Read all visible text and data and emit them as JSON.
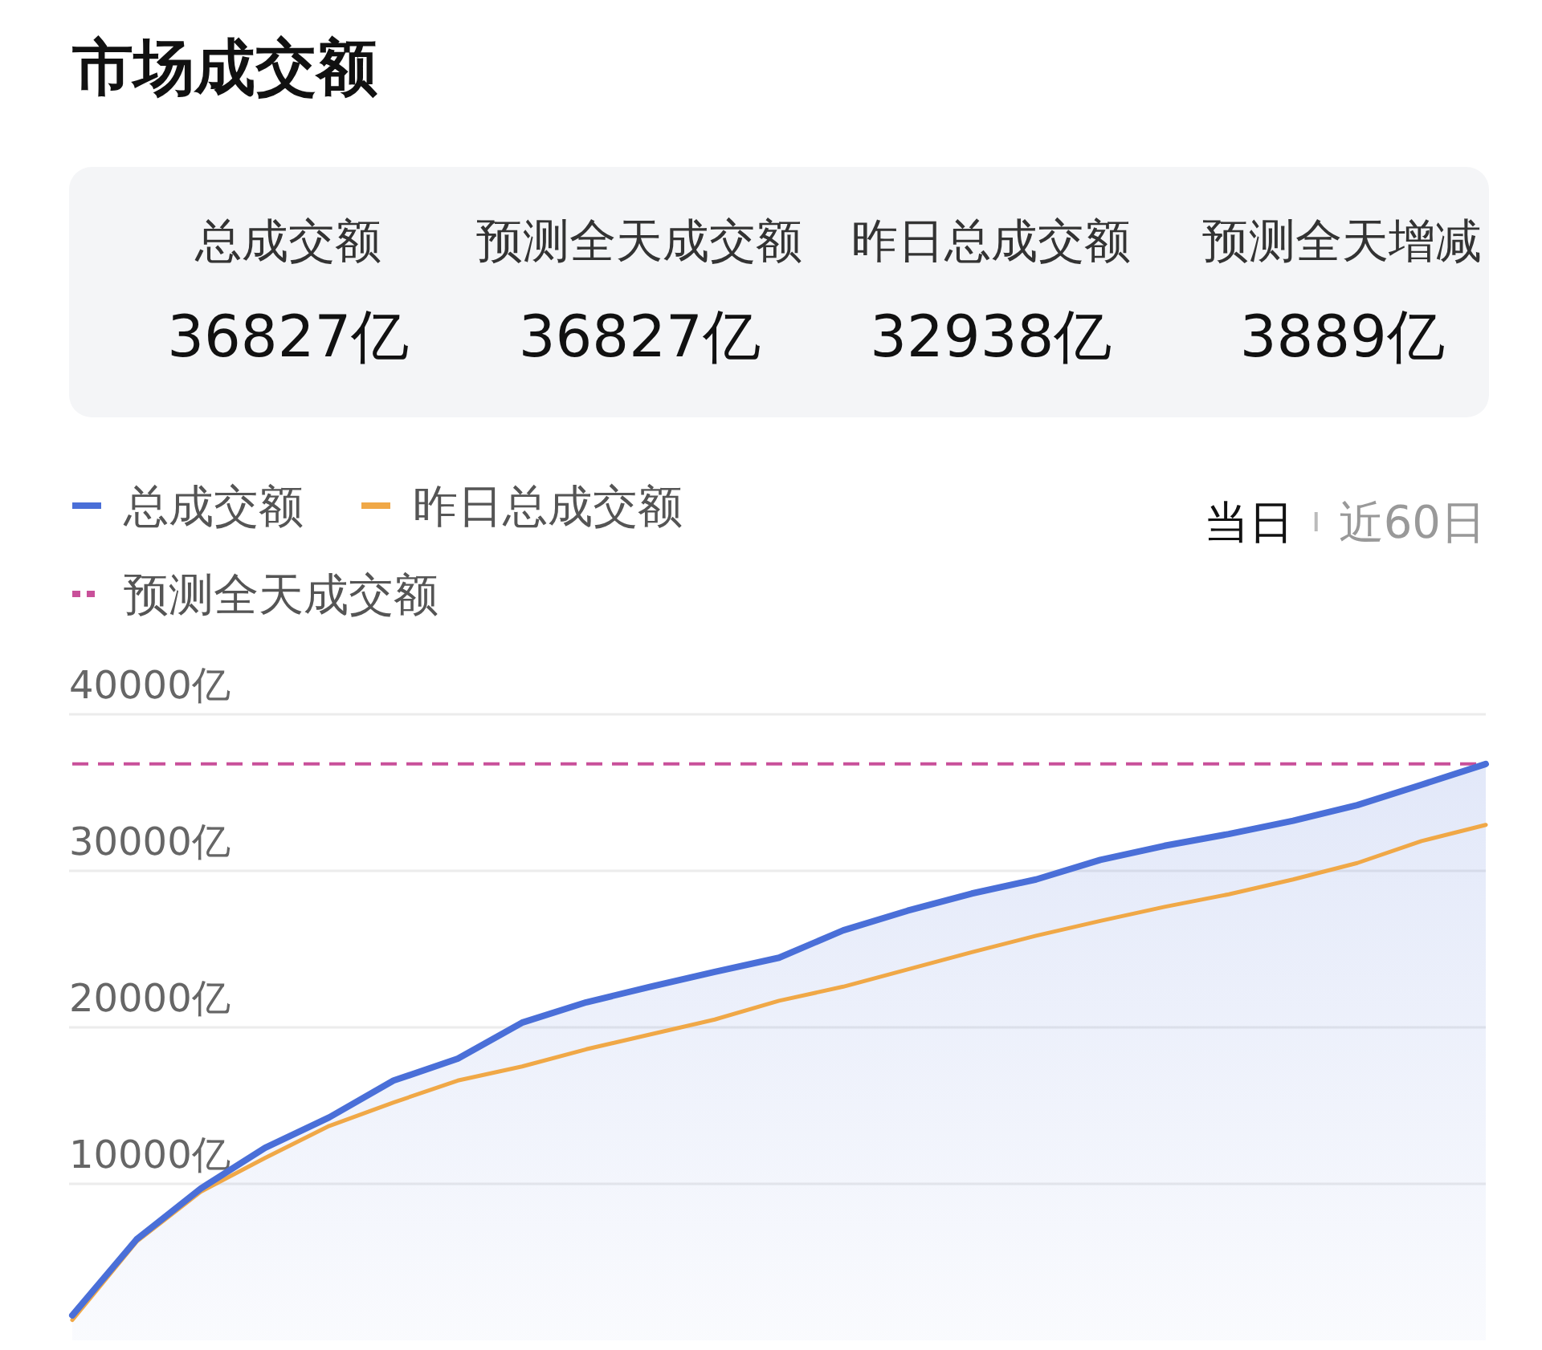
{
  "chart_data": [
    {
      "type": "other",
      "title": "市场成交额",
      "annotations": [
        "总成交额",
        "36827亿",
        "预测全天成交额",
        "36827亿",
        "昨日总成交额",
        "32938亿",
        "预测全天增减",
        "3889亿"
      ]
    },
    {
      "type": "line",
      "categories": [
        null,
        null,
        null,
        null,
        null,
        null,
        null,
        null,
        null,
        null,
        null,
        null,
        null,
        null,
        null,
        null,
        null,
        null,
        null,
        null,
        null,
        null,
        null
      ],
      "series": [
        {
          "name": "总成交额",
          "type": "area",
          "color": "#4a6fd8",
          "values": [
            1600,
            6450,
            9700,
            12300,
            14250,
            16600,
            18000,
            20300,
            21600,
            22600,
            23550,
            24450,
            26200,
            27450,
            28550,
            29450,
            30700,
            31600,
            32350,
            33200,
            34200,
            35500,
            36827
          ]
        },
        {
          "name": "昨日总成交额",
          "type": "line",
          "color": "#f0a847",
          "values": [
            1300,
            6300,
            9500,
            11650,
            13700,
            15200,
            16600,
            17500,
            18600,
            19550,
            20500,
            21700,
            22600,
            23700,
            24800,
            25850,
            26800,
            27700,
            28500,
            29450,
            30500,
            31900,
            32938
          ]
        },
        {
          "name": "预测全天成交额",
          "type": "line",
          "line_style": "dashed",
          "color": "#c9509a",
          "values": [
            36827,
            36827,
            36827,
            36827,
            36827,
            36827,
            36827,
            36827,
            36827,
            36827,
            36827,
            36827,
            36827,
            36827,
            36827,
            36827,
            36827,
            36827,
            36827,
            36827,
            36827,
            36827,
            36827
          ]
        }
      ],
      "ylim": [
        0,
        40000
      ],
      "yticks": [
        {
          "value": 10000,
          "label": "10000亿"
        },
        {
          "value": 20000,
          "label": "20000亿"
        },
        {
          "value": 30000,
          "label": "30000亿"
        },
        {
          "value": 40000,
          "label": "40000亿"
        }
      ],
      "grid": "y",
      "legend": "top left",
      "tick_labels": "y",
      "annotations": [
        "当日",
        "近60日"
      ]
    }
  ]
}
